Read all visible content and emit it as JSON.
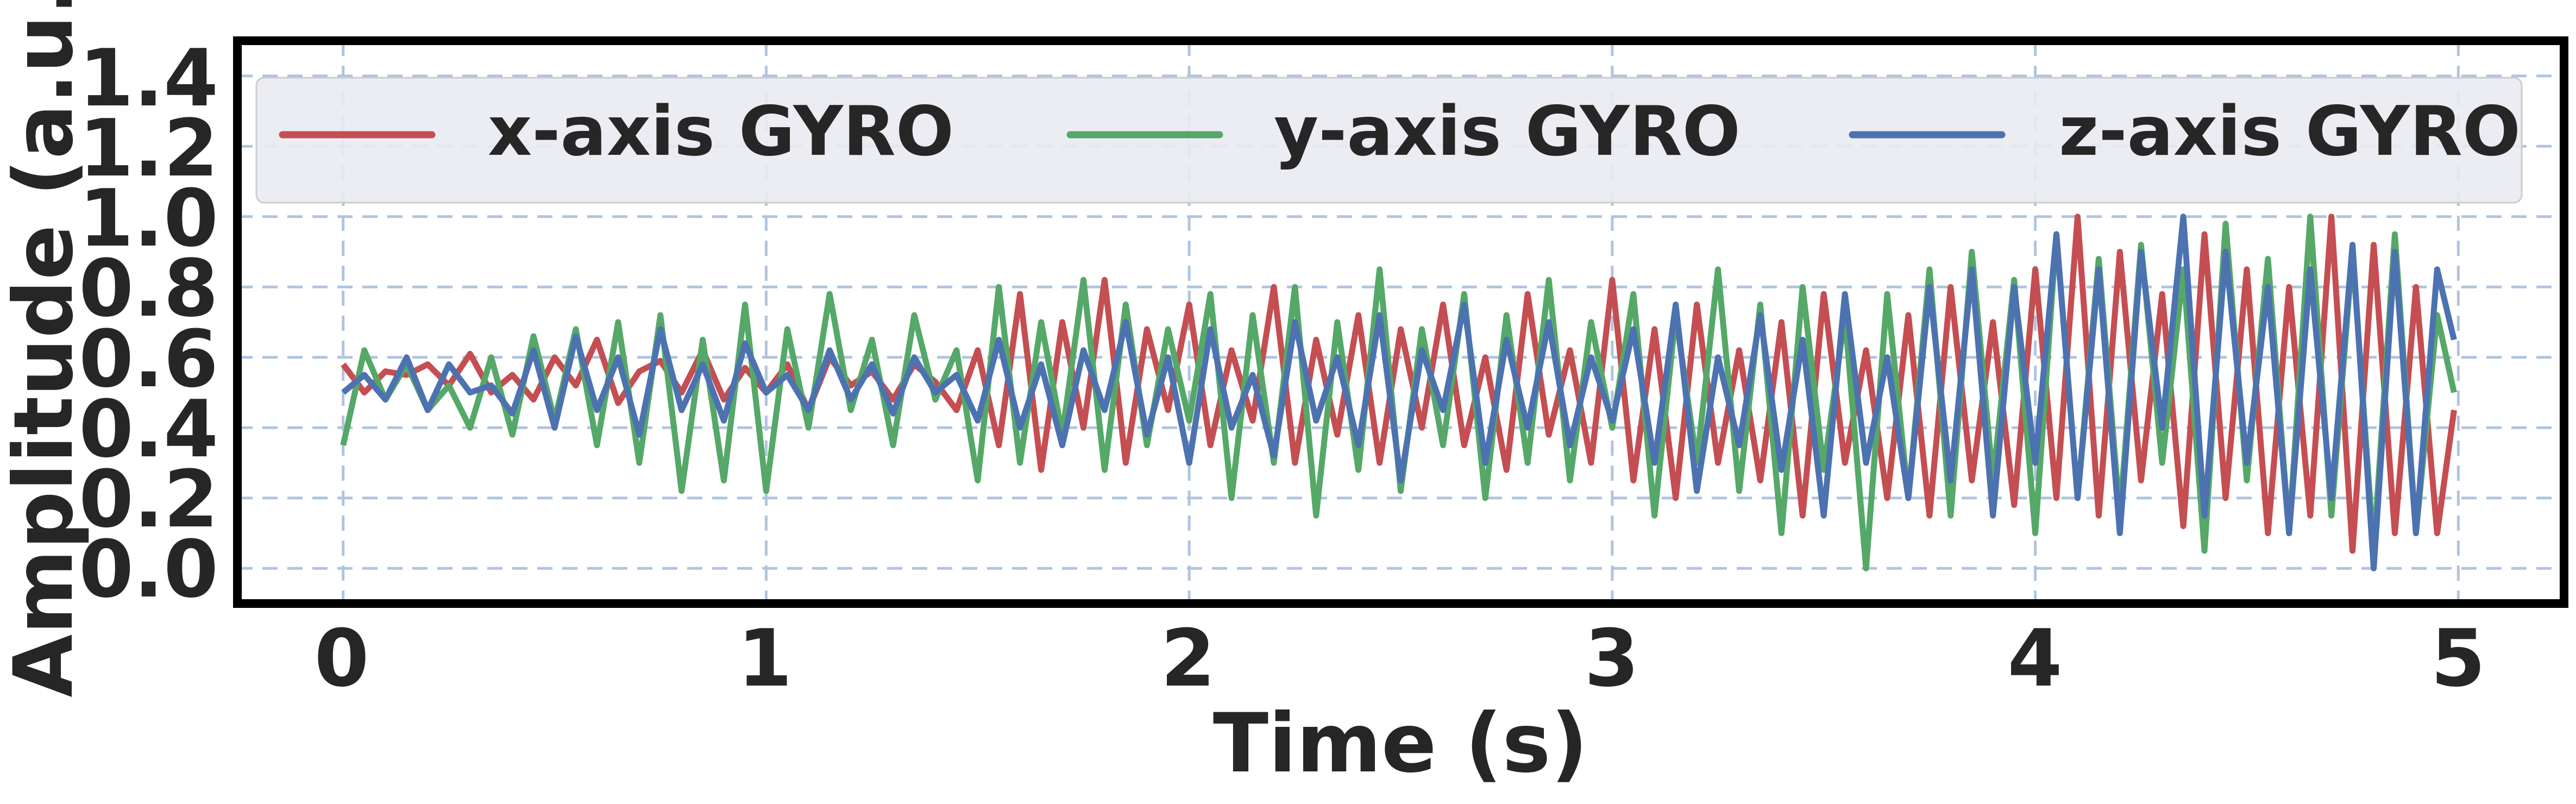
{
  "chart_data": {
    "type": "line",
    "title": "",
    "xlabel": "Time (s)",
    "ylabel": "Amplitude (a.u.)",
    "xlim": [
      -0.25,
      5.25
    ],
    "ylim": [
      -0.1,
      1.5
    ],
    "x_ticks": [
      "0",
      "1",
      "2",
      "3",
      "4",
      "5"
    ],
    "y_ticks": [
      "0.0",
      "0.2",
      "0.4",
      "0.6",
      "0.8",
      "1.0",
      "1.2",
      "1.4"
    ],
    "grid": true,
    "grid_style": "dashed",
    "legend_position": "top",
    "legend_columns": 3,
    "series": [
      {
        "name": "x-axis GYRO",
        "color": "#c44e52",
        "x": [
          0.0,
          0.05,
          0.1,
          0.15,
          0.2,
          0.25,
          0.3,
          0.35,
          0.4,
          0.45,
          0.5,
          0.55,
          0.6,
          0.65,
          0.7,
          0.75,
          0.8,
          0.85,
          0.9,
          0.95,
          1.0,
          1.05,
          1.1,
          1.15,
          1.2,
          1.25,
          1.3,
          1.35,
          1.4,
          1.45,
          1.5,
          1.55,
          1.6,
          1.65,
          1.7,
          1.75,
          1.8,
          1.85,
          1.9,
          1.95,
          2.0,
          2.05,
          2.1,
          2.15,
          2.2,
          2.25,
          2.3,
          2.35,
          2.4,
          2.45,
          2.5,
          2.55,
          2.6,
          2.65,
          2.7,
          2.75,
          2.8,
          2.85,
          2.9,
          2.95,
          3.0,
          3.05,
          3.1,
          3.15,
          3.2,
          3.25,
          3.3,
          3.35,
          3.4,
          3.45,
          3.5,
          3.55,
          3.6,
          3.65,
          3.7,
          3.75,
          3.8,
          3.85,
          3.9,
          3.95,
          4.0,
          4.05,
          4.1,
          4.15,
          4.2,
          4.25,
          4.3,
          4.35,
          4.4,
          4.45,
          4.5,
          4.55,
          4.6,
          4.65,
          4.7,
          4.75,
          4.8,
          4.85,
          4.9,
          4.95,
          4.99
        ],
        "values": [
          0.58,
          0.5,
          0.56,
          0.55,
          0.58,
          0.52,
          0.61,
          0.5,
          0.55,
          0.48,
          0.6,
          0.52,
          0.65,
          0.47,
          0.56,
          0.59,
          0.5,
          0.62,
          0.48,
          0.57,
          0.5,
          0.58,
          0.45,
          0.6,
          0.52,
          0.56,
          0.48,
          0.58,
          0.53,
          0.45,
          0.62,
          0.35,
          0.78,
          0.28,
          0.7,
          0.4,
          0.82,
          0.3,
          0.68,
          0.45,
          0.75,
          0.35,
          0.62,
          0.42,
          0.8,
          0.3,
          0.65,
          0.38,
          0.72,
          0.3,
          0.68,
          0.4,
          0.75,
          0.35,
          0.6,
          0.28,
          0.78,
          0.38,
          0.62,
          0.3,
          0.82,
          0.25,
          0.68,
          0.2,
          0.75,
          0.3,
          0.62,
          0.25,
          0.7,
          0.15,
          0.78,
          0.3,
          0.62,
          0.2,
          0.72,
          0.15,
          0.8,
          0.25,
          0.7,
          0.18,
          0.85,
          0.2,
          1.0,
          0.15,
          0.9,
          0.25,
          0.78,
          0.12,
          0.95,
          0.2,
          0.85,
          0.1,
          0.8,
          0.15,
          1.0,
          0.05,
          0.92,
          0.1,
          0.8,
          0.1,
          0.45
        ]
      },
      {
        "name": "y-axis GYRO",
        "color": "#55a868",
        "x": [
          0.0,
          0.05,
          0.1,
          0.15,
          0.2,
          0.25,
          0.3,
          0.35,
          0.4,
          0.45,
          0.5,
          0.55,
          0.6,
          0.65,
          0.7,
          0.75,
          0.8,
          0.85,
          0.9,
          0.95,
          1.0,
          1.05,
          1.1,
          1.15,
          1.2,
          1.25,
          1.3,
          1.35,
          1.4,
          1.45,
          1.5,
          1.55,
          1.6,
          1.65,
          1.7,
          1.75,
          1.8,
          1.85,
          1.9,
          1.95,
          2.0,
          2.05,
          2.1,
          2.15,
          2.2,
          2.25,
          2.3,
          2.35,
          2.4,
          2.45,
          2.5,
          2.55,
          2.6,
          2.65,
          2.7,
          2.75,
          2.8,
          2.85,
          2.9,
          2.95,
          3.0,
          3.05,
          3.1,
          3.15,
          3.2,
          3.25,
          3.3,
          3.35,
          3.4,
          3.45,
          3.5,
          3.55,
          3.6,
          3.65,
          3.7,
          3.75,
          3.8,
          3.85,
          3.9,
          3.95,
          4.0,
          4.05,
          4.1,
          4.15,
          4.2,
          4.25,
          4.3,
          4.35,
          4.4,
          4.45,
          4.5,
          4.55,
          4.6,
          4.65,
          4.7,
          4.75,
          4.8,
          4.85,
          4.9,
          4.95,
          4.99
        ],
        "values": [
          0.35,
          0.62,
          0.48,
          0.58,
          0.45,
          0.52,
          0.4,
          0.6,
          0.38,
          0.66,
          0.42,
          0.68,
          0.35,
          0.7,
          0.3,
          0.72,
          0.22,
          0.65,
          0.25,
          0.75,
          0.22,
          0.68,
          0.4,
          0.78,
          0.45,
          0.65,
          0.35,
          0.72,
          0.48,
          0.62,
          0.25,
          0.8,
          0.3,
          0.7,
          0.38,
          0.82,
          0.28,
          0.75,
          0.35,
          0.68,
          0.42,
          0.78,
          0.2,
          0.72,
          0.3,
          0.8,
          0.15,
          0.7,
          0.28,
          0.85,
          0.22,
          0.68,
          0.35,
          0.78,
          0.2,
          0.72,
          0.3,
          0.82,
          0.25,
          0.7,
          0.4,
          0.78,
          0.15,
          0.72,
          0.3,
          0.85,
          0.22,
          0.75,
          0.1,
          0.8,
          0.28,
          0.72,
          0.0,
          0.78,
          0.2,
          0.85,
          0.15,
          0.9,
          0.25,
          0.82,
          0.1,
          0.95,
          0.2,
          0.88,
          0.15,
          0.92,
          0.3,
          0.85,
          0.05,
          0.98,
          0.25,
          0.88,
          0.1,
          1.0,
          0.15,
          0.9,
          0.05,
          0.95,
          0.1,
          0.72,
          0.5
        ]
      },
      {
        "name": "z-axis GYRO",
        "color": "#4c72b0",
        "x": [
          0.0,
          0.05,
          0.1,
          0.15,
          0.2,
          0.25,
          0.3,
          0.35,
          0.4,
          0.45,
          0.5,
          0.55,
          0.6,
          0.65,
          0.7,
          0.75,
          0.8,
          0.85,
          0.9,
          0.95,
          1.0,
          1.05,
          1.1,
          1.15,
          1.2,
          1.25,
          1.3,
          1.35,
          1.4,
          1.45,
          1.5,
          1.55,
          1.6,
          1.65,
          1.7,
          1.75,
          1.8,
          1.85,
          1.9,
          1.95,
          2.0,
          2.05,
          2.1,
          2.15,
          2.2,
          2.25,
          2.3,
          2.35,
          2.4,
          2.45,
          2.5,
          2.55,
          2.6,
          2.65,
          2.7,
          2.75,
          2.8,
          2.85,
          2.9,
          2.95,
          3.0,
          3.05,
          3.1,
          3.15,
          3.2,
          3.25,
          3.3,
          3.35,
          3.4,
          3.45,
          3.5,
          3.55,
          3.6,
          3.65,
          3.7,
          3.75,
          3.8,
          3.85,
          3.9,
          3.95,
          4.0,
          4.05,
          4.1,
          4.15,
          4.2,
          4.25,
          4.3,
          4.35,
          4.4,
          4.45,
          4.5,
          4.55,
          4.6,
          4.65,
          4.7,
          4.75,
          4.8,
          4.85,
          4.9,
          4.95,
          4.99
        ],
        "values": [
          0.5,
          0.55,
          0.48,
          0.6,
          0.45,
          0.58,
          0.5,
          0.52,
          0.44,
          0.62,
          0.4,
          0.66,
          0.45,
          0.6,
          0.38,
          0.68,
          0.45,
          0.58,
          0.42,
          0.64,
          0.5,
          0.55,
          0.45,
          0.62,
          0.48,
          0.58,
          0.44,
          0.6,
          0.5,
          0.55,
          0.42,
          0.65,
          0.4,
          0.58,
          0.35,
          0.62,
          0.45,
          0.7,
          0.38,
          0.6,
          0.3,
          0.68,
          0.4,
          0.55,
          0.32,
          0.7,
          0.42,
          0.6,
          0.35,
          0.72,
          0.25,
          0.62,
          0.45,
          0.75,
          0.3,
          0.65,
          0.4,
          0.7,
          0.35,
          0.6,
          0.42,
          0.68,
          0.3,
          0.75,
          0.22,
          0.6,
          0.35,
          0.72,
          0.28,
          0.65,
          0.15,
          0.78,
          0.3,
          0.6,
          0.2,
          0.8,
          0.25,
          0.85,
          0.15,
          0.8,
          0.3,
          0.95,
          0.2,
          0.85,
          0.1,
          0.9,
          0.4,
          1.0,
          0.15,
          0.9,
          0.3,
          0.8,
          0.1,
          0.85,
          0.2,
          0.92,
          0.0,
          0.9,
          0.1,
          0.85,
          0.65
        ]
      }
    ]
  }
}
